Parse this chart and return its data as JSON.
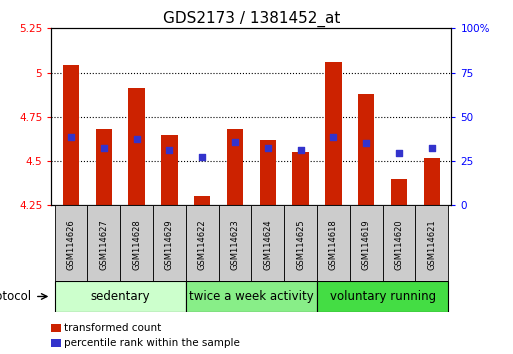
{
  "title": "GDS2173 / 1381452_at",
  "samples": [
    "GSM114626",
    "GSM114627",
    "GSM114628",
    "GSM114629",
    "GSM114622",
    "GSM114623",
    "GSM114624",
    "GSM114625",
    "GSM114618",
    "GSM114619",
    "GSM114620",
    "GSM114621"
  ],
  "bar_tops": [
    5.04,
    4.68,
    4.91,
    4.65,
    4.3,
    4.68,
    4.62,
    4.55,
    5.06,
    4.88,
    4.4,
    4.52
  ],
  "bar_base": 4.25,
  "blue_values": [
    4.635,
    4.575,
    4.625,
    4.565,
    4.525,
    4.605,
    4.575,
    4.565,
    4.635,
    4.6,
    4.545,
    4.575
  ],
  "bar_color": "#cc2200",
  "blue_color": "#3333cc",
  "ylim_left": [
    4.25,
    5.25
  ],
  "ylim_right": [
    0,
    100
  ],
  "yticks_left": [
    4.25,
    4.5,
    4.75,
    5.0,
    5.25
  ],
  "yticks_right": [
    0,
    25,
    50,
    75,
    100
  ],
  "ytick_labels_left": [
    "4.25",
    "4.5",
    "4.75",
    "5",
    "5.25"
  ],
  "ytick_labels_right": [
    "0",
    "25",
    "50",
    "75",
    "100%"
  ],
  "hgrid_vals": [
    4.5,
    4.75,
    5.0
  ],
  "groups": [
    {
      "label": "sedentary",
      "start": 0,
      "end": 4,
      "color": "#ccffcc"
    },
    {
      "label": "twice a week activity",
      "start": 4,
      "end": 8,
      "color": "#88ee88"
    },
    {
      "label": "voluntary running",
      "start": 8,
      "end": 12,
      "color": "#44dd44"
    }
  ],
  "protocol_label": "protocol",
  "legend_items": [
    {
      "color": "#cc2200",
      "label": "transformed count"
    },
    {
      "color": "#3333cc",
      "label": "percentile rank within the sample"
    }
  ],
  "bar_width": 0.5,
  "title_fontsize": 11,
  "tick_fontsize": 7.5,
  "sample_fontsize": 6,
  "group_fontsize": 8.5,
  "legend_fontsize": 7.5
}
